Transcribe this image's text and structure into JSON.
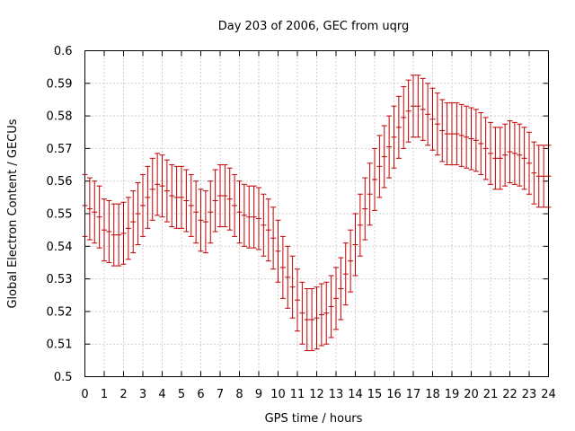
{
  "chart_data": {
    "type": "errorbar",
    "title": "Day 203 of 2006, GEC from uqrg",
    "xlabel": "GPS time / hours",
    "ylabel": "Global Electron Content / GECUs",
    "xlim": [
      0,
      24
    ],
    "ylim": [
      0.5,
      0.6
    ],
    "xticks": [
      "0",
      "1",
      "2",
      "3",
      "4",
      "5",
      "6",
      "7",
      "8",
      "9",
      "10",
      "11",
      "12",
      "13",
      "14",
      "15",
      "16",
      "17",
      "18",
      "19",
      "20",
      "21",
      "22",
      "23",
      "24"
    ],
    "yticks": [
      "0.5",
      "0.51",
      "0.52",
      "0.53",
      "0.54",
      "0.55",
      "0.56",
      "0.57",
      "0.58",
      "0.59",
      "0.6"
    ],
    "grid": true,
    "error": 0.0095,
    "x": [
      0,
      0.25,
      0.5,
      0.75,
      1,
      1.25,
      1.5,
      1.75,
      2,
      2.25,
      2.5,
      2.75,
      3,
      3.25,
      3.5,
      3.75,
      4,
      4.25,
      4.5,
      4.75,
      5,
      5.25,
      5.5,
      5.75,
      6,
      6.25,
      6.5,
      6.75,
      7,
      7.25,
      7.5,
      7.75,
      8,
      8.25,
      8.5,
      8.75,
      9,
      9.25,
      9.5,
      9.75,
      10,
      10.25,
      10.5,
      10.75,
      11,
      11.25,
      11.5,
      11.75,
      12,
      12.25,
      12.5,
      12.75,
      13,
      13.25,
      13.5,
      13.75,
      14,
      14.25,
      14.5,
      14.75,
      15,
      15.25,
      15.5,
      15.75,
      16,
      16.25,
      16.5,
      16.75,
      17,
      17.25,
      17.5,
      17.75,
      18,
      18.25,
      18.5,
      18.75,
      19,
      19.25,
      19.5,
      19.75,
      20,
      20.25,
      20.5,
      20.75,
      21,
      21.25,
      21.5,
      21.75,
      22,
      22.25,
      22.5,
      22.75,
      23,
      23.25,
      23.5,
      23.75,
      24
    ],
    "series": [
      {
        "name": "GEC",
        "color": "#c00000",
        "values": [
          0.5525,
          0.5515,
          0.5505,
          0.549,
          0.545,
          0.5445,
          0.5435,
          0.5435,
          0.544,
          0.5455,
          0.5475,
          0.55,
          0.5525,
          0.555,
          0.5575,
          0.559,
          0.5585,
          0.557,
          0.5555,
          0.555,
          0.555,
          0.554,
          0.5525,
          0.5505,
          0.548,
          0.5475,
          0.5505,
          0.554,
          0.5555,
          0.5555,
          0.5545,
          0.5525,
          0.5505,
          0.5495,
          0.549,
          0.549,
          0.5485,
          0.5465,
          0.545,
          0.5425,
          0.5385,
          0.5335,
          0.5305,
          0.5275,
          0.5235,
          0.5195,
          0.5175,
          0.5175,
          0.518,
          0.519,
          0.5195,
          0.5215,
          0.524,
          0.527,
          0.5315,
          0.5355,
          0.5405,
          0.5465,
          0.5515,
          0.556,
          0.5605,
          0.5645,
          0.5675,
          0.5705,
          0.5735,
          0.5765,
          0.5795,
          0.5815,
          0.583,
          0.583,
          0.582,
          0.5805,
          0.579,
          0.5775,
          0.5755,
          0.5745,
          0.5745,
          0.5745,
          0.574,
          0.5735,
          0.573,
          0.5725,
          0.5715,
          0.57,
          0.5685,
          0.567,
          0.567,
          0.568,
          0.569,
          0.5685,
          0.568,
          0.567,
          0.5655,
          0.5625,
          0.5615,
          0.5615,
          0.5615
        ]
      }
    ]
  }
}
